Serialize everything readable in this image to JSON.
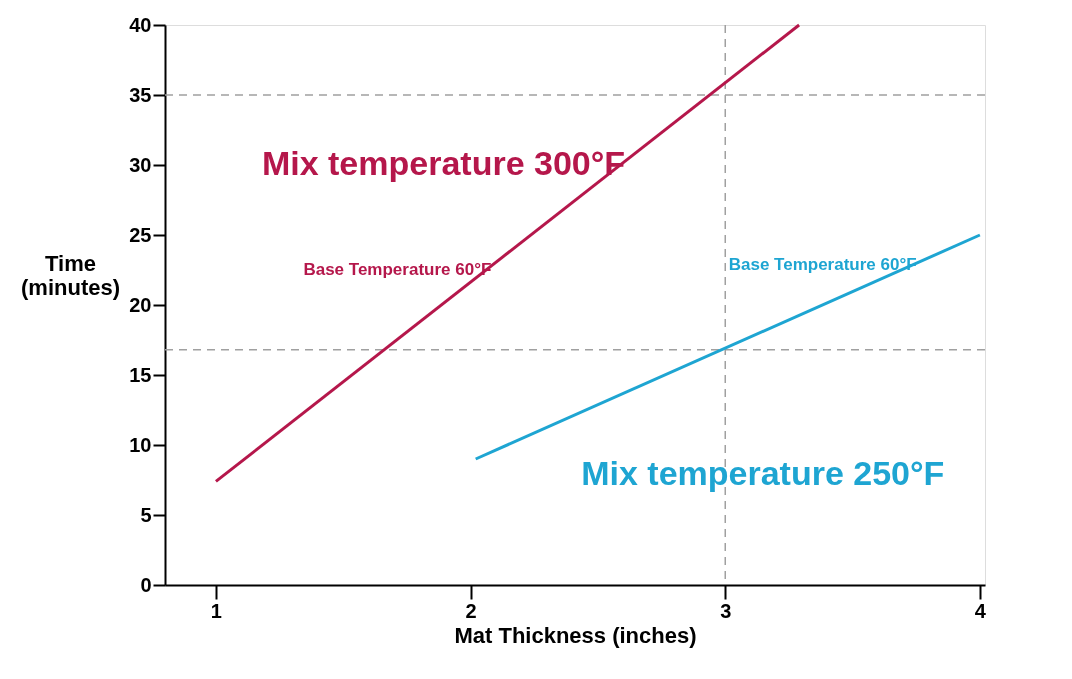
{
  "chart_data": {
    "type": "line",
    "xlabel": "Mat Thickness (inches)",
    "ylabel": "Time (minutes)",
    "series": [
      {
        "name": "Mix temperature 300°F",
        "color": "#b5174b",
        "x": [
          1.0,
          3.29
        ],
        "values": [
          7.4,
          40
        ]
      },
      {
        "name": "Mix temperature 250°F",
        "color": "#1ea5d2",
        "x": [
          2.02,
          4.0
        ],
        "values": [
          9.0,
          25.0
        ]
      }
    ],
    "annotations": [
      {
        "text": "Base Temperature  60°F",
        "x": 2.05,
        "y": 22.35
      },
      {
        "text": "Base Temperature  60°F",
        "x": 3.72,
        "y": 22.7
      }
    ],
    "ref_lines": [
      {
        "axis": "y",
        "value": 35,
        "color": "#a0a0a0",
        "line_style": "dashed"
      },
      {
        "axis": "y",
        "value": 16.8,
        "color": "#a0a0a0",
        "line_style": "dashed"
      },
      {
        "axis": "x",
        "value": 3,
        "color": "#a0a0a0",
        "line_style": "dashed"
      }
    ],
    "xlim": [
      0.8,
      4.02
    ],
    "ylim": [
      0,
      40
    ],
    "xticks": [
      1,
      2,
      3,
      4
    ],
    "yticks": [
      0,
      5,
      10,
      15,
      20,
      25,
      30,
      35,
      40
    ],
    "grid": false,
    "marker": "none",
    "line_style": "solid"
  }
}
